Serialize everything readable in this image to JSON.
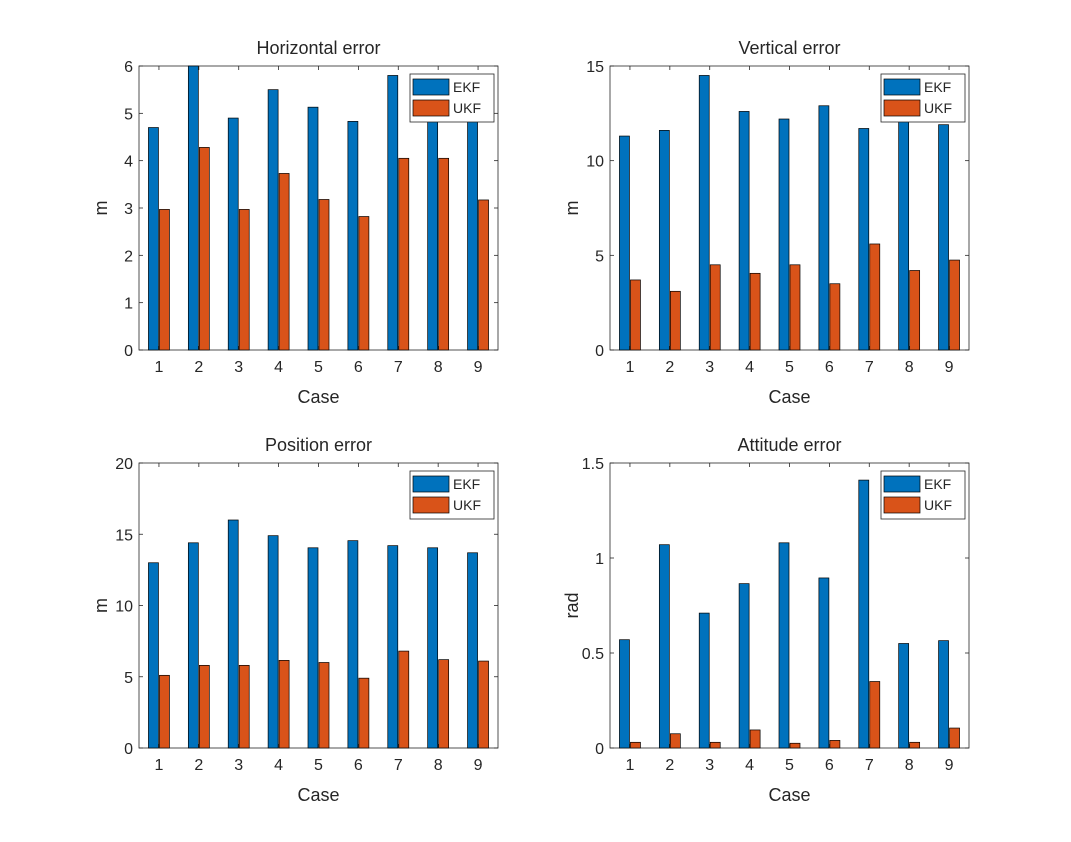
{
  "figure": {
    "colors": {
      "EKF": "#0072BD",
      "UKF": "#D95319"
    }
  },
  "chart_data": [
    {
      "type": "bar",
      "title": "Horizontal error",
      "xlabel": "Case",
      "ylabel": "m",
      "categories": [
        "1",
        "2",
        "3",
        "4",
        "5",
        "6",
        "7",
        "8",
        "9"
      ],
      "ylim": [
        0,
        6
      ],
      "yticks": [
        "0",
        "1",
        "2",
        "3",
        "4",
        "5",
        "6"
      ],
      "legend": "top-right",
      "series": [
        {
          "name": "EKF",
          "values": [
            4.7,
            6.1,
            4.9,
            5.5,
            5.13,
            4.83,
            5.8,
            4.85,
            4.95
          ]
        },
        {
          "name": "UKF",
          "values": [
            2.97,
            4.28,
            2.97,
            3.73,
            3.18,
            2.82,
            4.05,
            4.05,
            3.17
          ]
        }
      ]
    },
    {
      "type": "bar",
      "title": "Vertical error",
      "xlabel": "Case",
      "ylabel": "m",
      "categories": [
        "1",
        "2",
        "3",
        "4",
        "5",
        "6",
        "7",
        "8",
        "9"
      ],
      "ylim": [
        0,
        15
      ],
      "yticks": [
        "0",
        "5",
        "10",
        "15"
      ],
      "legend": "top-right",
      "series": [
        {
          "name": "EKF",
          "values": [
            11.3,
            11.6,
            14.5,
            12.6,
            12.2,
            12.9,
            11.7,
            12.2,
            11.9
          ]
        },
        {
          "name": "UKF",
          "values": [
            3.7,
            3.1,
            4.5,
            4.05,
            4.5,
            3.5,
            5.6,
            4.2,
            4.75
          ]
        }
      ]
    },
    {
      "type": "bar",
      "title": "Position error",
      "xlabel": "Case",
      "ylabel": "m",
      "categories": [
        "1",
        "2",
        "3",
        "4",
        "5",
        "6",
        "7",
        "8",
        "9"
      ],
      "ylim": [
        0,
        20
      ],
      "yticks": [
        "0",
        "5",
        "10",
        "15",
        "20"
      ],
      "legend": "top-right",
      "series": [
        {
          "name": "EKF",
          "values": [
            13.0,
            14.4,
            16.0,
            14.9,
            14.05,
            14.55,
            14.2,
            14.05,
            13.7
          ]
        },
        {
          "name": "UKF",
          "values": [
            5.1,
            5.8,
            5.8,
            6.15,
            6.0,
            4.9,
            6.8,
            6.2,
            6.1
          ]
        }
      ]
    },
    {
      "type": "bar",
      "title": "Attitude error",
      "xlabel": "Case",
      "ylabel": "rad",
      "categories": [
        "1",
        "2",
        "3",
        "4",
        "5",
        "6",
        "7",
        "8",
        "9"
      ],
      "ylim": [
        0,
        1.5
      ],
      "yticks": [
        "0",
        "0.5",
        "1",
        "1.5"
      ],
      "legend": "top-right",
      "series": [
        {
          "name": "EKF",
          "values": [
            0.57,
            1.07,
            0.71,
            0.865,
            1.08,
            0.895,
            1.41,
            0.55,
            0.565
          ]
        },
        {
          "name": "UKF",
          "values": [
            0.03,
            0.075,
            0.03,
            0.095,
            0.025,
            0.04,
            0.35,
            0.03,
            0.105
          ]
        }
      ]
    }
  ]
}
